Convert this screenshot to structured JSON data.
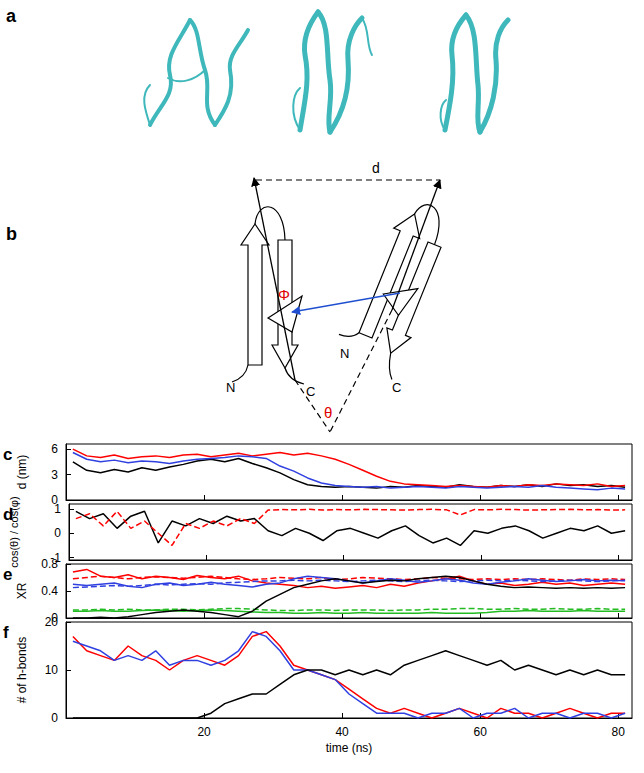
{
  "diagram": {
    "panel_a": "a",
    "panel_b": "b",
    "labels": {
      "d": "d",
      "Phi": "Φ",
      "theta": "θ",
      "N_left": "N",
      "C_left": "C",
      "N_right": "N",
      "C_right": "C"
    }
  },
  "chart_data": [
    {
      "type": "line",
      "panel": "c",
      "ylabel": "d (nm)",
      "x": [
        1,
        3,
        5,
        7,
        9,
        11,
        13,
        15,
        17,
        19,
        21,
        23,
        25,
        27,
        29,
        31,
        33,
        35,
        37,
        39,
        41,
        43,
        45,
        47,
        49,
        51,
        53,
        55,
        57,
        59,
        61,
        63,
        65,
        67,
        69,
        71,
        73,
        75,
        77,
        79,
        81
      ],
      "xlim": [
        0,
        82
      ],
      "xticks": [
        20,
        40,
        60,
        80
      ],
      "ylim": [
        0,
        6.6
      ],
      "yticks": [
        0,
        3,
        6
      ],
      "grid": false,
      "tick_labels": "y",
      "series": [
        {
          "color": "#000000",
          "line_style": "solid",
          "values": [
            4.5,
            3.5,
            3.2,
            3.6,
            3.3,
            3.8,
            3.5,
            3.9,
            4.2,
            4.6,
            4.8,
            4.5,
            4.9,
            4.3,
            3.8,
            3.2,
            2.4,
            1.8,
            1.6,
            1.5,
            1.6,
            1.5,
            1.4,
            1.6,
            1.5,
            1.7,
            1.6,
            1.5,
            1.8,
            1.6,
            1.5,
            1.7,
            1.6,
            1.8,
            1.6,
            1.9,
            1.7,
            1.8,
            1.6,
            1.7,
            1.5
          ]
        },
        {
          "color": "#ff0000",
          "line_style": "solid",
          "values": [
            6.0,
            5.2,
            5.0,
            5.3,
            4.9,
            5.1,
            5.2,
            5.0,
            5.3,
            5.4,
            5.1,
            5.3,
            5.5,
            5.2,
            5.4,
            5.6,
            5.3,
            5.5,
            5.2,
            4.8,
            4.2,
            3.5,
            2.8,
            2.2,
            1.9,
            1.8,
            1.7,
            1.6,
            1.7,
            1.6,
            1.5,
            1.7,
            1.6,
            1.8,
            1.7,
            1.9,
            1.8,
            1.7,
            1.9,
            1.6,
            1.7
          ]
        },
        {
          "color": "#3040e0",
          "line_style": "solid",
          "values": [
            5.6,
            4.8,
            4.5,
            4.7,
            4.4,
            4.6,
            4.5,
            4.3,
            4.6,
            4.8,
            4.9,
            5.0,
            5.2,
            5.1,
            4.9,
            4.0,
            3.4,
            2.6,
            2.0,
            1.7,
            1.6,
            1.5,
            1.6,
            1.4,
            1.5,
            1.6,
            1.5,
            1.4,
            1.6,
            1.5,
            1.4,
            1.5,
            1.6,
            1.5,
            1.7,
            1.5,
            1.4,
            1.3,
            1.2,
            1.4,
            1.3
          ]
        }
      ]
    },
    {
      "type": "line",
      "panel": "d",
      "ylabel": "cos(θ) / cos(φ)",
      "x": [
        1,
        3,
        5,
        7,
        9,
        11,
        13,
        15,
        17,
        19,
        21,
        23,
        25,
        27,
        29,
        31,
        33,
        35,
        37,
        39,
        41,
        43,
        45,
        47,
        49,
        51,
        53,
        55,
        57,
        59,
        61,
        63,
        65,
        67,
        69,
        71,
        73,
        75,
        77,
        79,
        81
      ],
      "xlim": [
        0,
        82
      ],
      "xticks": [
        20,
        40,
        60,
        80
      ],
      "ylim": [
        -1.1,
        1.2
      ],
      "yticks": [
        -1,
        0,
        1
      ],
      "grid": false,
      "tick_labels": "y",
      "series": [
        {
          "color": "#000000",
          "line_style": "solid",
          "values": [
            0.9,
            0.6,
            0.8,
            0.2,
            0.7,
            0.9,
            -0.4,
            0.5,
            0.3,
            0.6,
            0.4,
            0.7,
            0.5,
            0.6,
            0.1,
            -0.1,
            0.2,
            0.0,
            -0.3,
            0.1,
            0.2,
            0.0,
            -0.2,
            0.1,
            0.3,
            -0.1,
            -0.4,
            -0.2,
            -0.5,
            0.1,
            0.0,
            0.2,
            0.3,
            0.1,
            -0.2,
            0.0,
            0.2,
            0.1,
            0.3,
            0.0,
            0.1
          ]
        },
        {
          "color": "#ff0000",
          "line_style": "dashed",
          "values": [
            0.6,
            0.8,
            0.3,
            0.9,
            0.2,
            0.5,
            0.0,
            -0.5,
            0.4,
            0.2,
            0.5,
            0.3,
            0.6,
            0.4,
            0.95,
            0.97,
            0.96,
            0.98,
            0.95,
            0.97,
            0.96,
            0.98,
            0.97,
            0.96,
            0.95,
            0.97,
            0.98,
            0.96,
            0.75,
            0.97,
            0.96,
            0.98,
            0.97,
            0.95,
            0.96,
            0.97,
            0.98,
            0.96,
            0.97,
            0.95,
            0.96
          ]
        }
      ]
    },
    {
      "type": "line",
      "panel": "e",
      "ylabel": "XR",
      "x": [
        1,
        3,
        5,
        7,
        9,
        11,
        13,
        15,
        17,
        19,
        21,
        23,
        25,
        27,
        29,
        31,
        33,
        35,
        37,
        39,
        41,
        43,
        45,
        47,
        49,
        51,
        53,
        55,
        57,
        59,
        61,
        63,
        65,
        67,
        69,
        71,
        73,
        75,
        77,
        79,
        81
      ],
      "xlim": [
        0,
        82
      ],
      "xticks": [
        20,
        40,
        60,
        80
      ],
      "ylim": [
        0,
        0.8
      ],
      "yticks": [
        0,
        0.4,
        0.8
      ],
      "grid": false,
      "tick_labels": "y",
      "series": [
        {
          "color": "#ff0000",
          "line_style": "solid",
          "values": [
            0.68,
            0.72,
            0.62,
            0.6,
            0.64,
            0.58,
            0.62,
            0.6,
            0.57,
            0.63,
            0.6,
            0.58,
            0.62,
            0.55,
            0.52,
            0.5,
            0.48,
            0.45,
            0.47,
            0.44,
            0.46,
            0.48,
            0.45,
            0.5,
            0.47,
            0.52,
            0.55,
            0.58,
            0.62,
            0.55,
            0.5,
            0.52,
            0.48,
            0.5,
            0.53,
            0.5,
            0.52,
            0.48,
            0.5,
            0.52,
            0.5
          ]
        },
        {
          "color": "#ff0000",
          "line_style": "dashed",
          "values": [
            0.58,
            0.6,
            0.62,
            0.6,
            0.58,
            0.6,
            0.61,
            0.6,
            0.59,
            0.6,
            0.62,
            0.6,
            0.58,
            0.57,
            0.58,
            0.6,
            0.59,
            0.58,
            0.6,
            0.57,
            0.58,
            0.6,
            0.59,
            0.58,
            0.57,
            0.58,
            0.6,
            0.59,
            0.58,
            0.57,
            0.58,
            0.57,
            0.58,
            0.57,
            0.58,
            0.57,
            0.56,
            0.58,
            0.57,
            0.58,
            0.57
          ]
        },
        {
          "color": "#3040e0",
          "line_style": "solid",
          "values": [
            0.5,
            0.48,
            0.5,
            0.52,
            0.47,
            0.45,
            0.5,
            0.52,
            0.48,
            0.5,
            0.53,
            0.5,
            0.48,
            0.46,
            0.5,
            0.52,
            0.58,
            0.62,
            0.6,
            0.58,
            0.55,
            0.52,
            0.55,
            0.58,
            0.56,
            0.53,
            0.55,
            0.58,
            0.56,
            0.52,
            0.5,
            0.53,
            0.55,
            0.58,
            0.56,
            0.54,
            0.55,
            0.57,
            0.55,
            0.56,
            0.55
          ]
        },
        {
          "color": "#3040e0",
          "line_style": "dashed",
          "values": [
            0.45,
            0.46,
            0.47,
            0.48,
            0.47,
            0.48,
            0.5,
            0.49,
            0.5,
            0.51,
            0.5,
            0.52,
            0.53,
            0.54,
            0.55,
            0.55,
            0.56,
            0.55,
            0.56,
            0.55,
            0.54,
            0.55,
            0.56,
            0.55,
            0.54,
            0.55,
            0.56,
            0.55,
            0.54,
            0.55,
            0.56,
            0.55,
            0.56,
            0.55,
            0.54,
            0.55,
            0.56,
            0.55,
            0.54,
            0.55,
            0.56
          ]
        },
        {
          "color": "#22bb22",
          "line_style": "solid",
          "values": [
            0.1,
            0.1,
            0.11,
            0.1,
            0.1,
            0.11,
            0.12,
            0.11,
            0.1,
            0.11,
            0.12,
            0.11,
            0.1,
            0.09,
            0.08,
            0.08,
            0.07,
            0.07,
            0.08,
            0.07,
            0.07,
            0.08,
            0.07,
            0.07,
            0.07,
            0.07,
            0.08,
            0.07,
            0.07,
            0.07,
            0.08,
            0.1,
            0.1,
            0.11,
            0.1,
            0.1,
            0.1,
            0.11,
            0.1,
            0.1,
            0.1
          ]
        },
        {
          "color": "#22bb22",
          "line_style": "dashed",
          "values": [
            0.12,
            0.12,
            0.13,
            0.12,
            0.13,
            0.12,
            0.12,
            0.13,
            0.13,
            0.12,
            0.13,
            0.14,
            0.14,
            0.13,
            0.12,
            0.11,
            0.11,
            0.12,
            0.12,
            0.11,
            0.12,
            0.12,
            0.12,
            0.11,
            0.12,
            0.12,
            0.13,
            0.13,
            0.14,
            0.14,
            0.13,
            0.13,
            0.14,
            0.13,
            0.13,
            0.14,
            0.13,
            0.13,
            0.14,
            0.13,
            0.13
          ]
        },
        {
          "color": "#000000",
          "line_style": "solid",
          "values": [
            0.0,
            0.0,
            0.01,
            0.0,
            0.02,
            0.05,
            0.08,
            0.1,
            0.12,
            0.1,
            0.08,
            0.05,
            0.02,
            0.1,
            0.25,
            0.35,
            0.45,
            0.5,
            0.55,
            0.58,
            0.55,
            0.52,
            0.54,
            0.56,
            0.55,
            0.58,
            0.6,
            0.62,
            0.6,
            0.55,
            0.5,
            0.47,
            0.45,
            0.46,
            0.45,
            0.44,
            0.45,
            0.44,
            0.45,
            0.44,
            0.45
          ]
        }
      ]
    },
    {
      "type": "line",
      "panel": "f",
      "ylabel": "# of h-bonds",
      "xlabel": "time (ns)",
      "x": [
        1,
        3,
        5,
        7,
        9,
        11,
        13,
        15,
        17,
        19,
        21,
        23,
        25,
        27,
        29,
        31,
        33,
        35,
        37,
        39,
        41,
        43,
        45,
        47,
        49,
        51,
        53,
        55,
        57,
        59,
        61,
        63,
        65,
        67,
        69,
        71,
        73,
        75,
        77,
        79,
        81
      ],
      "xlim": [
        0,
        82
      ],
      "xticks": [
        20,
        40,
        60,
        80
      ],
      "ylim": [
        0,
        20
      ],
      "yticks": [
        0,
        10,
        20
      ],
      "grid": false,
      "series": [
        {
          "color": "#ff0000",
          "line_style": "solid",
          "values": [
            17,
            14,
            13,
            12,
            15,
            13,
            12,
            10,
            12,
            13,
            12,
            11,
            13,
            17,
            18,
            15,
            11,
            10,
            9,
            8,
            6,
            4,
            2,
            1,
            2,
            1,
            0,
            1,
            2,
            1,
            0,
            2,
            1,
            1,
            0,
            1,
            2,
            1,
            0,
            1,
            1
          ]
        },
        {
          "color": "#3040e0",
          "line_style": "solid",
          "values": [
            16,
            15,
            14,
            12,
            13,
            12,
            14,
            11,
            12,
            12,
            11,
            12,
            14,
            18,
            17,
            14,
            10,
            10,
            9,
            8,
            5,
            3,
            1,
            1,
            1,
            0,
            1,
            1,
            2,
            0,
            1,
            1,
            2,
            0,
            1,
            1,
            0,
            1,
            1,
            0,
            1
          ]
        },
        {
          "color": "#000000",
          "line_style": "solid",
          "values": [
            0,
            0,
            0,
            0,
            0,
            0,
            0,
            0,
            0,
            0,
            1,
            3,
            4,
            5,
            5,
            7,
            9,
            10,
            10,
            9,
            10,
            9,
            10,
            9,
            11,
            12,
            13,
            14,
            13,
            12,
            11,
            12,
            10,
            11,
            10,
            9,
            10,
            9,
            10,
            9,
            9
          ]
        }
      ]
    }
  ]
}
